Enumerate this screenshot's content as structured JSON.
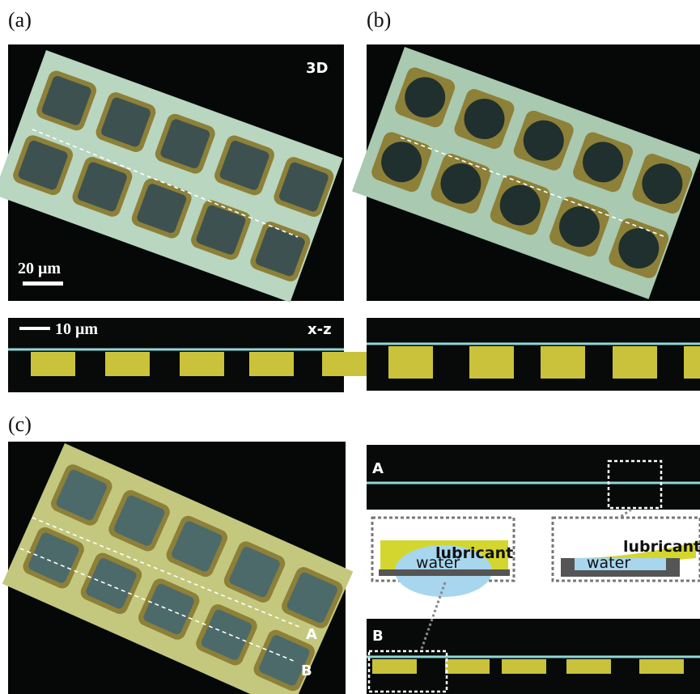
{
  "panels": {
    "a": {
      "label": "(a)",
      "tag": "3D",
      "scale_bar": "20 μm",
      "xz_scale_bar": "10 μm",
      "xz_tag": "x-z"
    },
    "b": {
      "label": "(b)"
    },
    "c": {
      "label": "(c)",
      "line_a": "A",
      "line_b": "B",
      "strip_a": "A",
      "strip_b": "B",
      "inset_left": {
        "lubricant": "lubricant",
        "water": "water"
      },
      "inset_right": {
        "lubricant": "lubricant",
        "water": "water"
      }
    }
  }
}
